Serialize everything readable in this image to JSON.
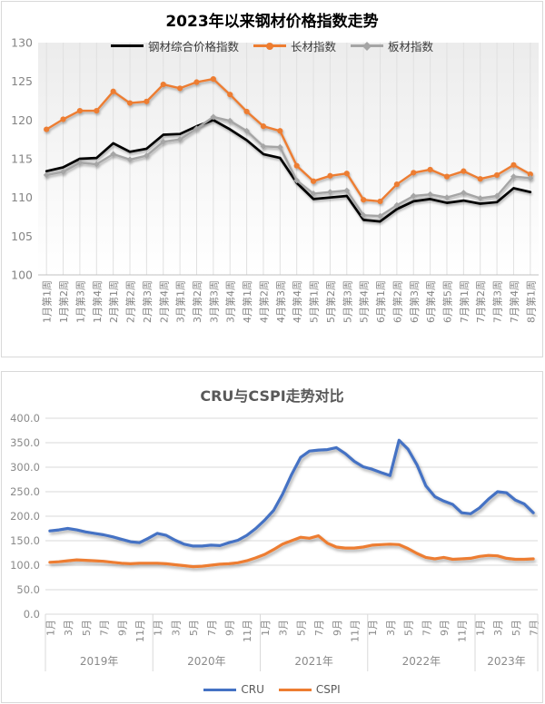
{
  "chart_data": [
    {
      "type": "line",
      "title": "2023年以来钢材价格指数走势",
      "legend_position": "top",
      "grid": "vertical",
      "ylim": [
        100,
        130
      ],
      "ytick_step": 5,
      "ytick_labels": [
        "100",
        "105",
        "110",
        "115",
        "120",
        "125",
        "130"
      ],
      "categories": [
        "1月第1周",
        "1月第2周",
        "1月第3周",
        "1月第4周",
        "2月第1周",
        "2月第2周",
        "2月第3周",
        "2月第4周",
        "3月第1周",
        "3月第2周",
        "3月第3周",
        "3月第4周",
        "4月第1周",
        "4月第2周",
        "4月第3周",
        "4月第4周",
        "5月第1周",
        "5月第2周",
        "5月第3周",
        "5月第4周",
        "6月第1周",
        "6月第2周",
        "6月第3周",
        "6月第4周",
        "6月第5周",
        "7月第1周",
        "7月第2周",
        "7月第3周",
        "7月第4周",
        "8月第1周"
      ],
      "series": [
        {
          "name": "钢材综合价格指数",
          "color": "#000000",
          "marker": "none",
          "values": [
            113.4,
            113.9,
            115.0,
            115.1,
            117.0,
            115.9,
            116.3,
            118.1,
            118.2,
            119.2,
            120.0,
            118.8,
            117.4,
            115.6,
            115.1,
            111.9,
            109.8,
            110.0,
            110.2,
            107.1,
            106.9,
            108.5,
            109.5,
            109.8,
            109.3,
            109.6,
            109.2,
            109.4,
            111.2,
            110.7
          ]
        },
        {
          "name": "长材指数",
          "color": "#ED7D31",
          "marker": "circle",
          "values": [
            118.8,
            120.1,
            121.2,
            121.2,
            123.7,
            122.2,
            122.4,
            124.6,
            124.1,
            124.9,
            125.3,
            123.3,
            121.1,
            119.2,
            118.6,
            114.1,
            112.1,
            112.8,
            113.1,
            109.7,
            109.5,
            111.7,
            113.2,
            113.6,
            112.7,
            113.4,
            112.4,
            112.9,
            114.2,
            113.0
          ]
        },
        {
          "name": "板材指数",
          "color": "#A5A5A5",
          "marker": "diamond",
          "values": [
            112.9,
            113.3,
            114.5,
            114.3,
            115.6,
            114.9,
            115.4,
            117.2,
            117.5,
            118.9,
            120.4,
            119.9,
            118.6,
            116.6,
            116.5,
            112.2,
            110.5,
            110.7,
            110.9,
            107.7,
            107.6,
            109.0,
            110.2,
            110.4,
            110.0,
            110.6,
            109.9,
            110.2,
            112.7,
            112.5
          ]
        }
      ],
      "colors": {
        "grid": "#e0e0e0",
        "axis": "#c0c0c0",
        "tick_text": "#858585"
      }
    },
    {
      "type": "line",
      "title": "CRU与CSPI走势对比",
      "legend_position": "bottom",
      "grid": "horizontal",
      "ylim": [
        0,
        400
      ],
      "ytick_step": 50,
      "ytick_labels": [
        "0.0",
        "50.0",
        "100.0",
        "150.0",
        "200.0",
        "250.0",
        "300.0",
        "350.0",
        "400.0"
      ],
      "x_axis": {
        "groups": [
          {
            "label": "2019年",
            "months": 12,
            "tick_labels": [
              "1月",
              "3月",
              "5月",
              "7月",
              "9月",
              "11月"
            ]
          },
          {
            "label": "2020年",
            "months": 12,
            "tick_labels": [
              "1月",
              "3月",
              "5月",
              "7月",
              "9月",
              "11月"
            ]
          },
          {
            "label": "2021年",
            "months": 12,
            "tick_labels": [
              "1月",
              "3月",
              "5月",
              "7月",
              "9月",
              "11月"
            ]
          },
          {
            "label": "2022年",
            "months": 12,
            "tick_labels": [
              "1月",
              "3月",
              "5月",
              "7月",
              "9月",
              "11月"
            ]
          },
          {
            "label": "2023年",
            "months": 7,
            "tick_labels": [
              "1月",
              "3月",
              "5月",
              "7月"
            ]
          }
        ]
      },
      "series": [
        {
          "name": "CRU",
          "color": "#4472C4",
          "marker": "none",
          "values": [
            170,
            172,
            175,
            172,
            168,
            165,
            162,
            158,
            153,
            148,
            146,
            155,
            165,
            161,
            151,
            143,
            139,
            139,
            141,
            140,
            146,
            151,
            161,
            175,
            192,
            212,
            245,
            285,
            320,
            333,
            335,
            336,
            340,
            328,
            312,
            301,
            296,
            289,
            283,
            355,
            337,
            305,
            262,
            240,
            231,
            224,
            207,
            205,
            217,
            235,
            250,
            248,
            233,
            225,
            207
          ]
        },
        {
          "name": "CSPI",
          "color": "#ED7D31",
          "marker": "none",
          "values": [
            106,
            107,
            109,
            111,
            110,
            109,
            108,
            106,
            104,
            103,
            104,
            104,
            104,
            103,
            101,
            99,
            97,
            98,
            100,
            102,
            103,
            105,
            109,
            115,
            122,
            132,
            143,
            150,
            157,
            155,
            160,
            145,
            137,
            135,
            135,
            137,
            141,
            142,
            143,
            142,
            134,
            124,
            116,
            113,
            116,
            112,
            113,
            114,
            118,
            120,
            119,
            114,
            112,
            112,
            113
          ]
        }
      ],
      "colors": {
        "grid": "#d9d9d9",
        "separator": "#d9d9d9",
        "tick_text": "#8a8a8a"
      }
    }
  ]
}
